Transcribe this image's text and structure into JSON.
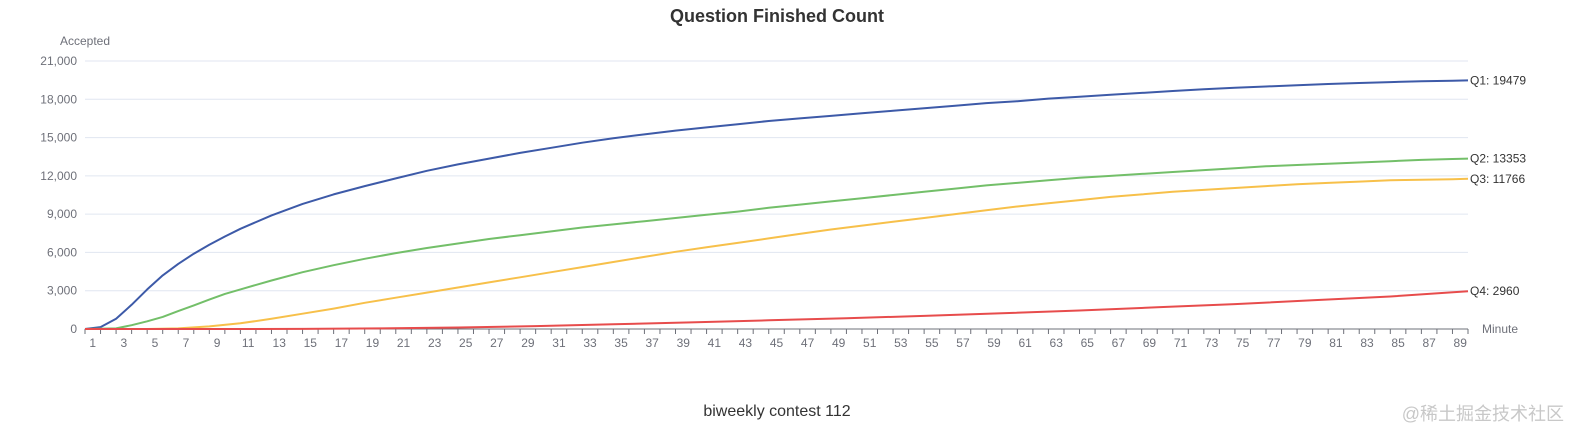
{
  "chart_data": {
    "type": "line",
    "title": "Question Finished Count",
    "xlabel": "Minute",
    "ylabel": "Accepted",
    "caption": "biweekly contest 112",
    "watermark": "@稀土掘金技术社区",
    "x_range": [
      1,
      90
    ],
    "x_tick_labels": [
      "1",
      "3",
      "5",
      "7",
      "9",
      "11",
      "13",
      "15",
      "17",
      "19",
      "21",
      "23",
      "25",
      "27",
      "29",
      "31",
      "33",
      "35",
      "37",
      "39",
      "41",
      "43",
      "45",
      "47",
      "49",
      "51",
      "53",
      "55",
      "57",
      "59",
      "61",
      "63",
      "65",
      "67",
      "69",
      "71",
      "73",
      "75",
      "77",
      "79",
      "81",
      "83",
      "85",
      "87",
      "89"
    ],
    "ylim": [
      0,
      21000
    ],
    "y_ticks": [
      0,
      3000,
      6000,
      9000,
      12000,
      15000,
      18000,
      21000
    ],
    "y_tick_labels": [
      "0",
      "3,000",
      "6,000",
      "9,000",
      "12,000",
      "15,000",
      "18,000",
      "21,000"
    ],
    "grid": true,
    "series": [
      {
        "name": "Q1",
        "end_label": "Q1: 19479",
        "color": "#3d5aa8",
        "points": [
          [
            1,
            0
          ],
          [
            2,
            150
          ],
          [
            3,
            800
          ],
          [
            4,
            1900
          ],
          [
            5,
            3100
          ],
          [
            6,
            4200
          ],
          [
            7,
            5100
          ],
          [
            8,
            5900
          ],
          [
            9,
            6600
          ],
          [
            10,
            7250
          ],
          [
            11,
            7850
          ],
          [
            13,
            8900
          ],
          [
            15,
            9800
          ],
          [
            17,
            10550
          ],
          [
            19,
            11200
          ],
          [
            21,
            11800
          ],
          [
            23,
            12400
          ],
          [
            25,
            12900
          ],
          [
            27,
            13350
          ],
          [
            29,
            13800
          ],
          [
            31,
            14200
          ],
          [
            33,
            14600
          ],
          [
            35,
            14950
          ],
          [
            37,
            15250
          ],
          [
            39,
            15550
          ],
          [
            41,
            15800
          ],
          [
            43,
            16050
          ],
          [
            45,
            16300
          ],
          [
            47,
            16500
          ],
          [
            49,
            16700
          ],
          [
            51,
            16900
          ],
          [
            53,
            17100
          ],
          [
            55,
            17300
          ],
          [
            57,
            17500
          ],
          [
            59,
            17700
          ],
          [
            61,
            17850
          ],
          [
            63,
            18050
          ],
          [
            65,
            18200
          ],
          [
            67,
            18350
          ],
          [
            69,
            18500
          ],
          [
            71,
            18650
          ],
          [
            73,
            18780
          ],
          [
            75,
            18900
          ],
          [
            77,
            19000
          ],
          [
            79,
            19100
          ],
          [
            81,
            19200
          ],
          [
            83,
            19280
          ],
          [
            85,
            19350
          ],
          [
            87,
            19420
          ],
          [
            89,
            19460
          ],
          [
            90,
            19479
          ]
        ]
      },
      {
        "name": "Q2",
        "end_label": "Q2: 13353",
        "color": "#73bf69",
        "points": [
          [
            1,
            0
          ],
          [
            3,
            50
          ],
          [
            4,
            300
          ],
          [
            5,
            600
          ],
          [
            6,
            950
          ],
          [
            7,
            1400
          ],
          [
            8,
            1850
          ],
          [
            9,
            2300
          ],
          [
            10,
            2750
          ],
          [
            11,
            3100
          ],
          [
            13,
            3800
          ],
          [
            15,
            4450
          ],
          [
            17,
            5000
          ],
          [
            19,
            5500
          ],
          [
            21,
            5950
          ],
          [
            23,
            6350
          ],
          [
            25,
            6700
          ],
          [
            27,
            7050
          ],
          [
            29,
            7350
          ],
          [
            31,
            7650
          ],
          [
            33,
            7950
          ],
          [
            35,
            8200
          ],
          [
            37,
            8450
          ],
          [
            39,
            8700
          ],
          [
            41,
            8950
          ],
          [
            43,
            9200
          ],
          [
            45,
            9500
          ],
          [
            47,
            9750
          ],
          [
            49,
            10000
          ],
          [
            51,
            10250
          ],
          [
            53,
            10500
          ],
          [
            55,
            10750
          ],
          [
            57,
            11000
          ],
          [
            59,
            11250
          ],
          [
            61,
            11450
          ],
          [
            63,
            11650
          ],
          [
            65,
            11850
          ],
          [
            67,
            12000
          ],
          [
            69,
            12150
          ],
          [
            71,
            12300
          ],
          [
            73,
            12450
          ],
          [
            75,
            12600
          ],
          [
            77,
            12750
          ],
          [
            79,
            12850
          ],
          [
            81,
            12950
          ],
          [
            83,
            13050
          ],
          [
            85,
            13150
          ],
          [
            87,
            13250
          ],
          [
            89,
            13320
          ],
          [
            90,
            13353
          ]
        ]
      },
      {
        "name": "Q3",
        "end_label": "Q3: 11766",
        "color": "#f7c04a",
        "points": [
          [
            1,
            0
          ],
          [
            5,
            0
          ],
          [
            7,
            50
          ],
          [
            9,
            200
          ],
          [
            11,
            450
          ],
          [
            13,
            800
          ],
          [
            15,
            1200
          ],
          [
            17,
            1600
          ],
          [
            19,
            2050
          ],
          [
            21,
            2450
          ],
          [
            23,
            2850
          ],
          [
            25,
            3250
          ],
          [
            27,
            3650
          ],
          [
            29,
            4050
          ],
          [
            31,
            4450
          ],
          [
            33,
            4850
          ],
          [
            35,
            5250
          ],
          [
            37,
            5650
          ],
          [
            39,
            6050
          ],
          [
            41,
            6400
          ],
          [
            43,
            6750
          ],
          [
            45,
            7100
          ],
          [
            47,
            7450
          ],
          [
            49,
            7800
          ],
          [
            51,
            8100
          ],
          [
            53,
            8400
          ],
          [
            55,
            8700
          ],
          [
            57,
            9000
          ],
          [
            59,
            9300
          ],
          [
            61,
            9600
          ],
          [
            63,
            9850
          ],
          [
            65,
            10100
          ],
          [
            67,
            10350
          ],
          [
            69,
            10550
          ],
          [
            71,
            10750
          ],
          [
            73,
            10900
          ],
          [
            75,
            11050
          ],
          [
            77,
            11200
          ],
          [
            79,
            11350
          ],
          [
            81,
            11450
          ],
          [
            83,
            11550
          ],
          [
            85,
            11650
          ],
          [
            87,
            11700
          ],
          [
            89,
            11740
          ],
          [
            90,
            11766
          ]
        ]
      },
      {
        "name": "Q4",
        "end_label": "Q4: 2960",
        "color": "#e74c4c",
        "points": [
          [
            1,
            0
          ],
          [
            10,
            0
          ],
          [
            15,
            10
          ],
          [
            20,
            50
          ],
          [
            25,
            120
          ],
          [
            30,
            230
          ],
          [
            35,
            370
          ],
          [
            40,
            520
          ],
          [
            45,
            680
          ],
          [
            50,
            850
          ],
          [
            55,
            1030
          ],
          [
            60,
            1230
          ],
          [
            65,
            1450
          ],
          [
            70,
            1700
          ],
          [
            75,
            1950
          ],
          [
            80,
            2250
          ],
          [
            85,
            2550
          ],
          [
            90,
            2960
          ]
        ]
      }
    ]
  }
}
